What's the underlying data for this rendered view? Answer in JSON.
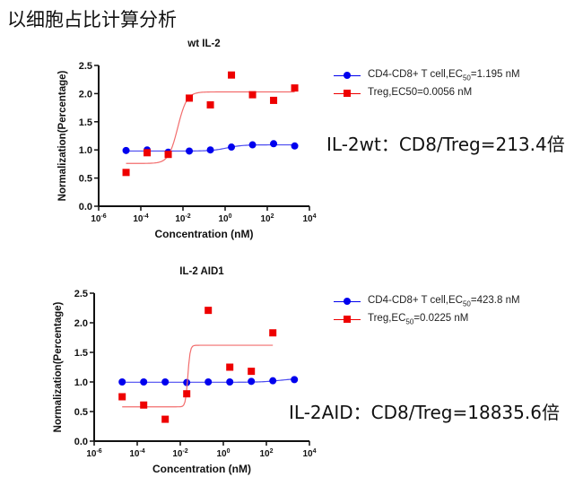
{
  "page": {
    "title": "以细胞占比计算分析"
  },
  "colors": {
    "cd8": "#0000ee",
    "treg": "#ee0000",
    "treg_fit": "#f26d6d",
    "cd8_fit": "#4a4af0"
  },
  "chart_data": [
    {
      "type": "scatter",
      "title": "wt IL-2",
      "xlabel": "Concentration (nM)",
      "ylabel": "Normalization(Percentage)",
      "xscale": "log",
      "xlim_log10": [
        -6,
        4
      ],
      "ylim": [
        0,
        2.5
      ],
      "xticks": [
        {
          "base": "10",
          "exp": "-6"
        },
        {
          "base": "10",
          "exp": "-4"
        },
        {
          "base": "10",
          "exp": "-2"
        },
        {
          "base": "10",
          "exp": "0"
        },
        {
          "base": "10",
          "exp": "2"
        },
        {
          "base": "10",
          "exp": "4"
        }
      ],
      "yticks": [
        "0.0",
        "0.5",
        "1.0",
        "1.5",
        "2.0",
        "2.5"
      ],
      "legend_position": "right",
      "series": [
        {
          "name": "CD4-CD8+ T cell,EC",
          "name_sub": "50",
          "name_suffix": "=1.195 nM",
          "marker": "circle",
          "x_log10": [
            -4.7,
            -3.7,
            -2.7,
            -1.7,
            -0.7,
            0.3,
            1.3,
            2.3,
            3.3
          ],
          "y": [
            0.99,
            1.0,
            0.96,
            0.98,
            1.0,
            1.05,
            1.09,
            1.11,
            1.07
          ],
          "fit": {
            "bottom": 0.98,
            "top": 1.09,
            "logEC50": 0.08,
            "hill": 1.2
          }
        },
        {
          "name": "Treg,EC50=0.0056 nM",
          "name_sub": "",
          "name_suffix": "",
          "marker": "square",
          "x_log10": [
            -4.7,
            -3.7,
            -2.7,
            -1.7,
            -0.7,
            0.3,
            1.3,
            2.3,
            3.3
          ],
          "y": [
            0.6,
            0.95,
            0.92,
            1.92,
            1.8,
            2.33,
            1.98,
            1.88,
            2.1
          ],
          "fit": {
            "bottom": 0.76,
            "top": 2.03,
            "logEC50": -2.25,
            "hill": 2.0
          }
        }
      ],
      "annotation": "IL-2wt：CD8/Treg=213.4倍"
    },
    {
      "type": "scatter",
      "title": "IL-2 AID1",
      "xlabel": "Concentration (nM)",
      "ylabel": "Normalization(Percentage)",
      "xscale": "log",
      "xlim_log10": [
        -6,
        4
      ],
      "ylim": [
        0,
        2.5
      ],
      "xticks": [
        {
          "base": "10",
          "exp": "-6"
        },
        {
          "base": "10",
          "exp": "-4"
        },
        {
          "base": "10",
          "exp": "-2"
        },
        {
          "base": "10",
          "exp": "0"
        },
        {
          "base": "10",
          "exp": "2"
        },
        {
          "base": "10",
          "exp": "4"
        }
      ],
      "yticks": [
        "0.0",
        "0.5",
        "1.0",
        "1.5",
        "2.0",
        "2.5"
      ],
      "legend_position": "right",
      "series": [
        {
          "name": "CD4-CD8+ T cell,EC",
          "name_sub": "50",
          "name_suffix": "=423.8 nM",
          "marker": "circle",
          "x_log10": [
            -4.7,
            -3.7,
            -2.7,
            -1.7,
            -0.7,
            0.3,
            1.3,
            2.3,
            3.3
          ],
          "y": [
            1.0,
            1.0,
            1.0,
            0.99,
            1.0,
            1.0,
            1.01,
            1.02,
            1.04
          ],
          "fit": {
            "bottom": 0.995,
            "top": 1.06,
            "logEC50": 2.63,
            "hill": 1.0
          }
        },
        {
          "name": "Treg,EC",
          "name_sub": "50",
          "name_suffix": "=0.0225 nM",
          "marker": "square",
          "x_log10": [
            -4.7,
            -3.7,
            -2.7,
            -1.7,
            -0.7,
            0.3,
            1.3,
            2.3
          ],
          "y": [
            0.75,
            0.61,
            0.37,
            0.8,
            2.21,
            1.25,
            1.18,
            1.83
          ],
          "fit": {
            "bottom": 0.58,
            "top": 1.62,
            "logEC50": -1.65,
            "hill": 8.0
          }
        }
      ],
      "annotation": "IL-2AID：CD8/Treg=18835.6倍"
    }
  ]
}
